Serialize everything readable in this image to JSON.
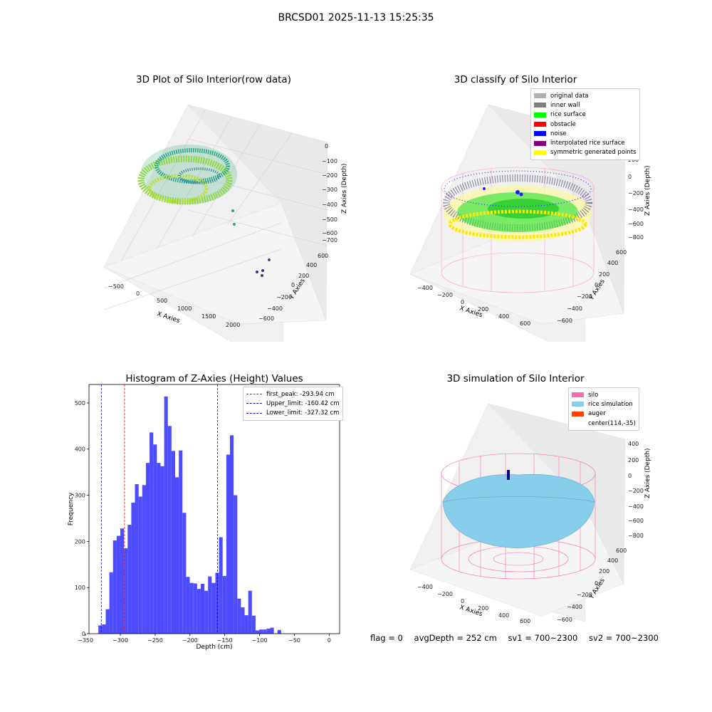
{
  "suptitle": "BRCSD01 2025-11-13 15:25:35",
  "status": {
    "flag": "flag = 0",
    "avg_depth": "avgDepth = 252 cm",
    "sv1": "sv1 = 700~2300",
    "sv2": "sv2 = 700~2300"
  },
  "colors": {
    "hist_bar": "#4d4dff",
    "first_peak": "#ff0000",
    "limits": "#0000cc",
    "silo": "#ff69b4",
    "rice": "#87ceeb",
    "auger": "#ff4500"
  },
  "chart_data": [
    {
      "type": "scatter",
      "title": "3D Plot of Silo Interior(row data)",
      "projection": "3d",
      "xlabel": "X Axies",
      "ylabel": "Y Axies",
      "zlabel": "Z Axies (Depth)",
      "x_ticks": [
        "−500",
        "0",
        "500",
        "1000",
        "1500",
        "2000"
      ],
      "y_ticks": [
        "−600",
        "−400",
        "−200",
        "0",
        "200",
        "400",
        "600"
      ],
      "z_ticks": [
        "0",
        "−100",
        "−200",
        "−300",
        "−400",
        "−500",
        "−600",
        "−700"
      ],
      "colormap": "viridis"
    },
    {
      "type": "scatter",
      "title": "3D classify of Silo Interior",
      "projection": "3d",
      "xlabel": "X Axies",
      "ylabel": "Y Axies",
      "zlabel": "Z Axies (Depth)",
      "x_ticks": [
        "−400",
        "−200",
        "0",
        "200",
        "400",
        "600"
      ],
      "y_ticks": [
        "−600",
        "−400",
        "−200",
        "0",
        "200",
        "400",
        "600"
      ],
      "z_ticks": [
        "200",
        "0",
        "−200",
        "−400",
        "−600",
        "−800"
      ],
      "legend": [
        {
          "label": "original data",
          "color": "#b0b0b0"
        },
        {
          "label": "inner wall",
          "color": "#808080"
        },
        {
          "label": "rice surface",
          "color": "#00ff00"
        },
        {
          "label": "obstacle",
          "color": "#ff0000"
        },
        {
          "label": "noise",
          "color": "#0000ff"
        },
        {
          "label": "interpolated rice surface",
          "color": "#800080"
        },
        {
          "label": "symmetric generated points",
          "color": "#ffff00"
        }
      ],
      "legend_position": "upper right"
    },
    {
      "type": "bar",
      "title": "Histogram of Z-Axies (Height) Values",
      "xlabel": "Depth (cm)",
      "ylabel": "Frequency",
      "xlim": [
        -345,
        15
      ],
      "ylim": [
        0,
        540
      ],
      "x_ticks": [
        -350,
        -300,
        -250,
        -200,
        -150,
        -100,
        -50,
        0
      ],
      "x_tick_labels": [
        "−350",
        "−300",
        "−250",
        "−200",
        "−150",
        "−100",
        "−50",
        "0"
      ],
      "y_ticks": [
        0,
        100,
        200,
        300,
        400,
        500
      ],
      "bin_start": -331.5,
      "bin_width": 5.25,
      "values": [
        18,
        20,
        53,
        133,
        202,
        212,
        228,
        185,
        236,
        284,
        324,
        297,
        322,
        370,
        436,
        410,
        370,
        363,
        514,
        450,
        396,
        339,
        397,
        262,
        123,
        110,
        109,
        97,
        108,
        93,
        124,
        110,
        132,
        209,
        125,
        388,
        430,
        300,
        76,
        57,
        40,
        93,
        39,
        7,
        9,
        9,
        11,
        13,
        0,
        8
      ],
      "vlines": [
        {
          "label": "first_peak: -293.94 cm",
          "x": -293.94,
          "color": "#ff0000"
        },
        {
          "label": "Upper_limit: -160.42 cm",
          "x": -160.42,
          "color": "#0000cc"
        },
        {
          "label": "Lower_limit: -327.32 cm",
          "x": -327.32,
          "color": "#0000cc"
        }
      ],
      "legend_position": "upper right"
    },
    {
      "type": "surface",
      "title": "3D simulation of Silo Interior",
      "projection": "3d",
      "xlabel": "X Axies",
      "ylabel": "Y Axies",
      "zlabel": "Z Axies (Depth)",
      "x_ticks": [
        "−400",
        "−200",
        "0",
        "200",
        "400",
        "600"
      ],
      "y_ticks": [
        "−600",
        "−400",
        "−200",
        "0",
        "200",
        "400",
        "600"
      ],
      "z_ticks": [
        "400",
        "200",
        "0",
        "−200",
        "−400",
        "−600",
        "−800"
      ],
      "legend": [
        {
          "label": "silo",
          "color": "#ff69b4"
        },
        {
          "label": "rice simulation",
          "color": "#87ceeb"
        },
        {
          "label": "auger",
          "color": "#ff4500"
        },
        {
          "label": "center(114,-35)",
          "color": ""
        }
      ],
      "legend_position": "upper right"
    }
  ]
}
